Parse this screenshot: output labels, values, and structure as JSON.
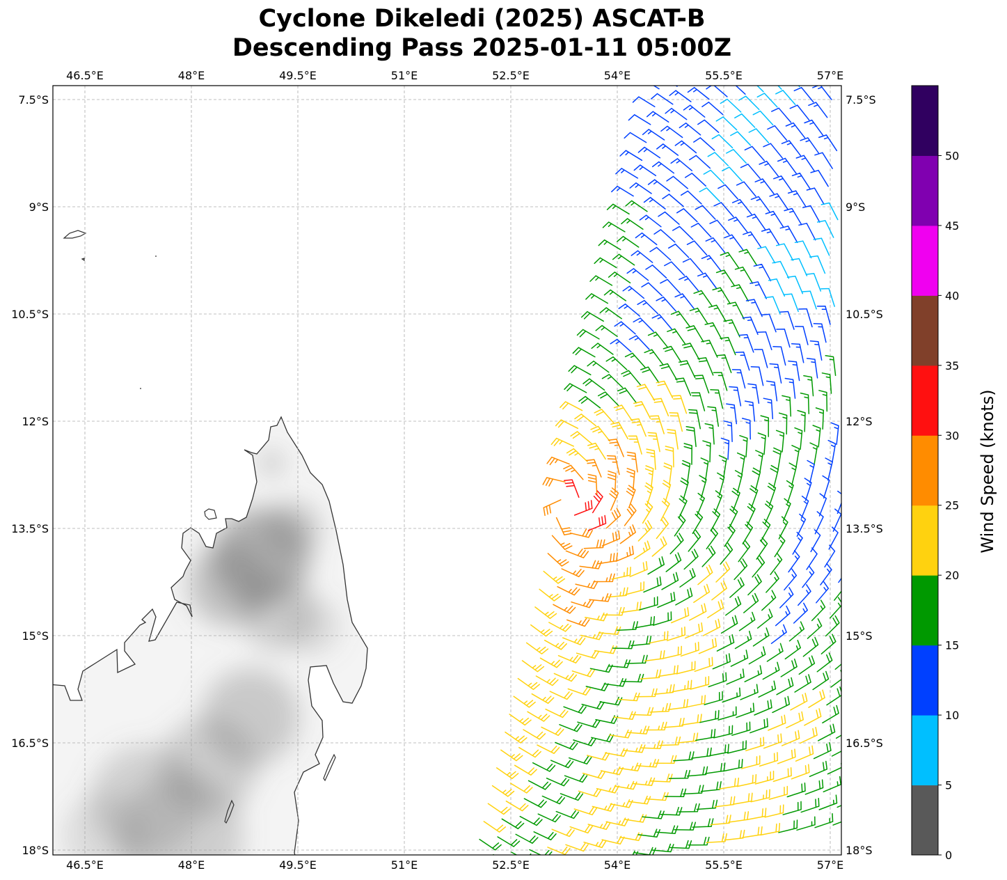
{
  "title": {
    "line1": "Cyclone Dikeledi (2025) ASCAT-B",
    "line2": "Descending Pass 2025-01-11 05:00Z"
  },
  "chart_data": {
    "type": "wind-barb-map",
    "title": "Cyclone Dikeledi (2025) ASCAT-B Descending Pass 2025-01-11 05:00Z",
    "lon_range": [
      46.05,
      57.15
    ],
    "lat_range_south": [
      7.3,
      18.1
    ],
    "lon_ticks": [
      46.5,
      48,
      49.5,
      51,
      52.5,
      54,
      55.5,
      57
    ],
    "lon_tick_labels": [
      "46.5°E",
      "48°E",
      "49.5°E",
      "51°E",
      "52.5°E",
      "54°E",
      "55.5°E",
      "57°E"
    ],
    "lat_ticks": [
      7.5,
      9,
      10.5,
      12,
      13.5,
      15,
      16.5,
      18
    ],
    "lat_tick_labels": [
      "7.5°S",
      "9°S",
      "10.5°S",
      "12°S",
      "13.5°S",
      "15°S",
      "16.5°S",
      "18°S"
    ],
    "grid": true,
    "land": "northern Madagascar with grayscale terrain relief",
    "swath": {
      "left_edge_north": [
        54.6,
        7.3
      ],
      "left_edge_south": [
        52.0,
        18.1
      ],
      "spacing_deg": 0.25
    },
    "cyclone_center_approx": {
      "lon": 53.3,
      "lat_south": 13.2
    },
    "max_wind_knots_approx": 32,
    "colorbar": {
      "label": "Wind Speed (knots)",
      "bounds": [
        0,
        5,
        10,
        15,
        20,
        25,
        30,
        35,
        40,
        45,
        50,
        55
      ],
      "tick_labels": [
        "0",
        "5",
        "10",
        "15",
        "20",
        "25",
        "30",
        "35",
        "40",
        "45",
        "50"
      ],
      "colors": [
        "#595959",
        "#00bfff",
        "#0040ff",
        "#009900",
        "#ffd20f",
        "#ff8c00",
        "#ff1010",
        "#80402a",
        "#f000f0",
        "#8000b0",
        "#300060"
      ]
    }
  }
}
